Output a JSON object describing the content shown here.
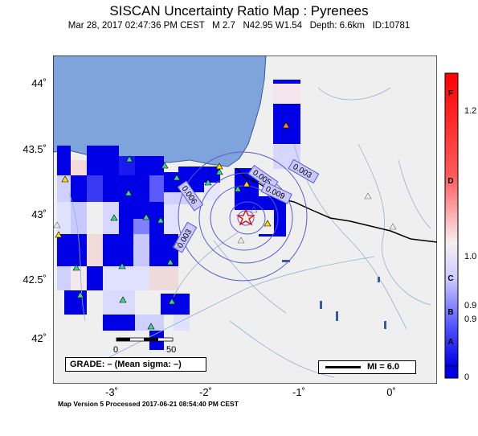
{
  "header": {
    "title": "SISCAN Uncertainty Ratio Map : Pyrenees",
    "subtitle": "Mar 28, 2017 02:47:36 PM CEST   M 2.7   N42.95 W1.54   Depth: 6.6km   ID:10781"
  },
  "footer": {
    "text": "Map Version 5 Processed 2017-06-21 08:54:40 PM CEST"
  },
  "axes": {
    "lat_labels": [
      "44˚",
      "43.5˚",
      "43˚",
      "42.5˚",
      "42˚"
    ],
    "lon_labels": [
      "-3˚",
      "-2˚",
      "-1˚",
      "0˚"
    ]
  },
  "contours": {
    "labels": [
      "0.003",
      "0.005",
      "0.009",
      "0.006",
      "0.003"
    ]
  },
  "colorbar": {
    "values": [
      "1.2",
      "1.0",
      "0.9",
      "0.9",
      "0"
    ],
    "letters": [
      "F",
      "D",
      "C",
      "B",
      "A"
    ]
  },
  "scale": {
    "labels": [
      "0",
      "50"
    ]
  },
  "grade": {
    "text": "GRADE: – (Mean sigma: –)"
  },
  "legend": {
    "mi_text": "MI = 6.0"
  },
  "colors": {
    "sea": "#7fa4dc",
    "land": "#efefef",
    "cell_high": "#0000e6",
    "epicenter": "#e00000",
    "contour": "#5a5ad6"
  }
}
